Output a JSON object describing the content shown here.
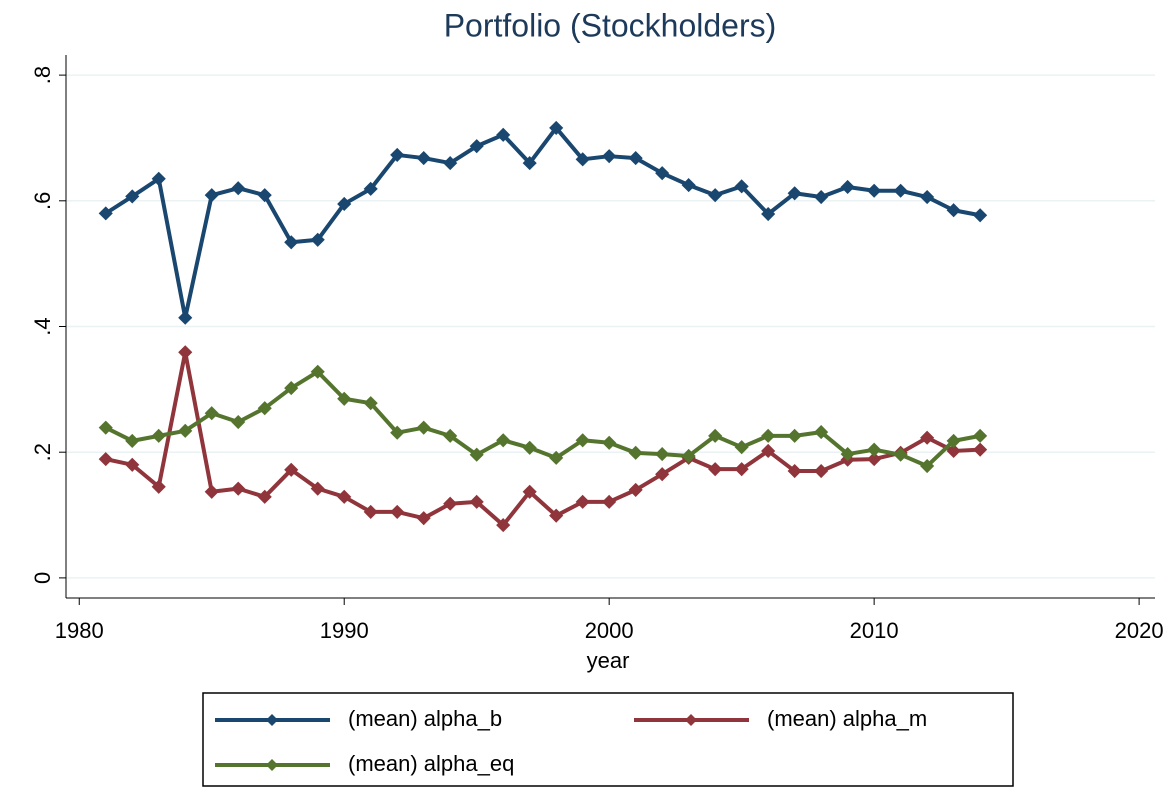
{
  "chart_data": {
    "type": "line",
    "title": "Portfolio (Stockholders)",
    "x_label": "year",
    "x": [
      1981,
      1982,
      1983,
      1984,
      1985,
      1986,
      1987,
      1988,
      1989,
      1990,
      1991,
      1992,
      1993,
      1994,
      1995,
      1996,
      1997,
      1998,
      1999,
      2000,
      2001,
      2002,
      2003,
      2004,
      2005,
      2006,
      2007,
      2008,
      2009,
      2010,
      2011,
      2012,
      2013,
      2014
    ],
    "series": [
      {
        "name": "(mean) alpha_b",
        "color": "#1a476f",
        "values": [
          0.58,
          0.607,
          0.635,
          0.414,
          0.609,
          0.62,
          0.609,
          0.534,
          0.538,
          0.595,
          0.619,
          0.673,
          0.668,
          0.66,
          0.687,
          0.705,
          0.66,
          0.716,
          0.666,
          0.671,
          0.668,
          0.644,
          0.625,
          0.609,
          0.623,
          0.579,
          0.612,
          0.606,
          0.622,
          0.616,
          0.616,
          0.606,
          0.585,
          0.577
        ]
      },
      {
        "name": "(mean) alpha_m",
        "color": "#90353b",
        "values": [
          0.189,
          0.18,
          0.145,
          0.359,
          0.137,
          0.142,
          0.129,
          0.172,
          0.142,
          0.129,
          0.105,
          0.105,
          0.095,
          0.118,
          0.121,
          0.084,
          0.137,
          0.099,
          0.121,
          0.121,
          0.14,
          0.165,
          0.191,
          0.173,
          0.173,
          0.202,
          0.17,
          0.17,
          0.188,
          0.189,
          0.199,
          0.223,
          0.202,
          0.204
        ]
      },
      {
        "name": "(mean) alpha_eq",
        "color": "#55752f",
        "values": [
          0.239,
          0.218,
          0.226,
          0.234,
          0.262,
          0.248,
          0.27,
          0.302,
          0.328,
          0.285,
          0.278,
          0.231,
          0.239,
          0.226,
          0.196,
          0.219,
          0.207,
          0.191,
          0.219,
          0.215,
          0.199,
          0.197,
          0.194,
          0.226,
          0.208,
          0.226,
          0.226,
          0.232,
          0.197,
          0.204,
          0.196,
          0.178,
          0.218,
          0.226
        ]
      }
    ],
    "xlim": [
      1979.5,
      2020.6
    ],
    "xticks": [
      1980,
      1990,
      2000,
      2010,
      2020
    ],
    "ylim": [
      -0.032,
      0.832
    ],
    "yticks": [
      0,
      {
        "value": 0.2,
        "label": ".2"
      },
      {
        "value": 0.4,
        "label": ".4"
      },
      {
        "value": 0.6,
        "label": ".6"
      },
      {
        "value": 0.8,
        "label": ".8"
      }
    ],
    "grid": true
  }
}
